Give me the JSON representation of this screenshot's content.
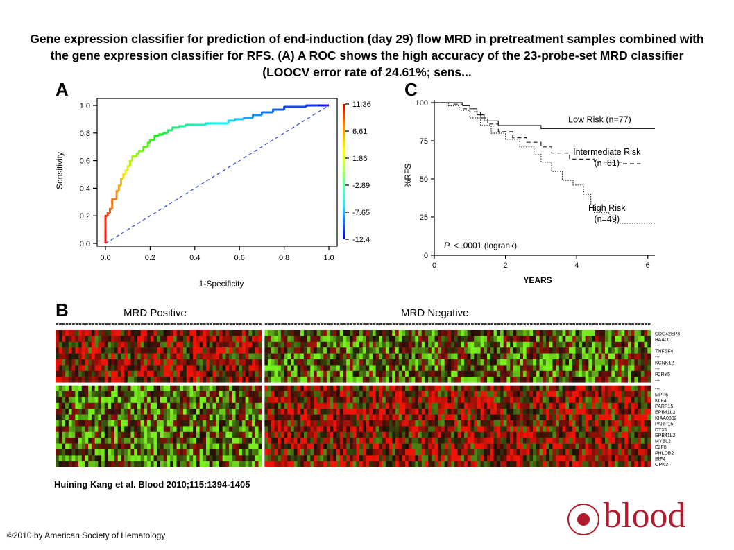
{
  "title": "Gene expression classifier for prediction of end-induction (day 29) flow MRD in pretreatment samples combined with the gene expression classifier for RFS. (A) A ROC shows the high accuracy of the 23-probe-set MRD classifier (LOOCV error rate of 24.61%; sens...",
  "panels": {
    "a": "A",
    "b": "B",
    "c": "C"
  },
  "citation": "Huining Kang et al. Blood 2010;115:1394-1405",
  "copyright": "©2010 by American Society of Hematology",
  "logo": {
    "text": "blood",
    "color": "#b01b2e"
  },
  "chart_data": [
    {
      "panel": "A",
      "type": "line",
      "xlabel": "1-Specificity",
      "ylabel": "Sensitivity",
      "xlim": [
        0,
        1
      ],
      "ylim": [
        0,
        1
      ],
      "xticks": [
        "0.0",
        "0.2",
        "0.4",
        "0.6",
        "0.8",
        "1.0"
      ],
      "yticks": [
        "0.0",
        "0.2",
        "0.4",
        "0.6",
        "0.8",
        "1.0"
      ],
      "series": [
        {
          "style": "rainbow",
          "x": [
            0,
            0,
            0.01,
            0.02,
            0.03,
            0.05,
            0.06,
            0.07,
            0.08,
            0.09,
            0.1,
            0.11,
            0.12,
            0.14,
            0.15,
            0.17,
            0.19,
            0.2,
            0.22,
            0.24,
            0.26,
            0.28,
            0.3,
            0.33,
            0.36,
            0.4,
            0.45,
            0.5,
            0.55,
            0.58,
            0.62,
            0.66,
            0.7,
            0.75,
            0.8,
            0.9,
            0.95,
            1.0
          ],
          "y": [
            0,
            0.1,
            0.2,
            0.22,
            0.25,
            0.32,
            0.38,
            0.42,
            0.47,
            0.5,
            0.53,
            0.56,
            0.6,
            0.63,
            0.65,
            0.67,
            0.7,
            0.73,
            0.75,
            0.78,
            0.79,
            0.8,
            0.82,
            0.84,
            0.85,
            0.86,
            0.86,
            0.87,
            0.87,
            0.89,
            0.9,
            0.91,
            0.93,
            0.95,
            0.97,
            0.99,
            1.0,
            1.0
          ]
        },
        {
          "style": "dashed",
          "color": "#3a4fd6",
          "x": [
            0,
            1
          ],
          "y": [
            0,
            1
          ]
        }
      ],
      "colorbar": {
        "ticks": [
          "11.36",
          "6.61",
          "1.86",
          "-2.89",
          "-7.65",
          "-12.4"
        ],
        "range": [
          -12.4,
          11.36
        ]
      }
    },
    {
      "panel": "C",
      "type": "line",
      "xlabel": "YEARS",
      "ylabel": "%RFS",
      "xlim": [
        0,
        6.2
      ],
      "ylim": [
        0,
        100
      ],
      "xticks": [
        "0",
        "2",
        "4",
        "6"
      ],
      "yticks": [
        "0",
        "25",
        "50",
        "75",
        "100"
      ],
      "annotation": "< .0001 (logrank)",
      "annotation_prefix": "P",
      "series": [
        {
          "name": "Low Risk (n=77)",
          "style": "solid",
          "x": [
            0,
            0.4,
            0.8,
            1.0,
            1.2,
            1.4,
            1.8,
            2.5,
            3.0,
            6.2
          ],
          "y": [
            100,
            100,
            98,
            96,
            92,
            88,
            85,
            85,
            83,
            83
          ]
        },
        {
          "name": "Intermediate Risk (n=81)",
          "style": "dashed",
          "x": [
            0,
            0.5,
            0.8,
            1.0,
            1.3,
            1.5,
            1.8,
            2.2,
            2.6,
            3.0,
            3.3,
            3.8,
            4.5,
            5.3,
            5.8
          ],
          "y": [
            100,
            99,
            96,
            94,
            90,
            86,
            81,
            77,
            74,
            71,
            67,
            63,
            61,
            60,
            60
          ]
        },
        {
          "name": "High Risk (n=49)",
          "style": "dotted",
          "x": [
            0,
            0.4,
            0.7,
            1.0,
            1.3,
            1.6,
            2.0,
            2.4,
            2.8,
            3.0,
            3.3,
            3.6,
            3.9,
            4.2,
            4.4,
            4.5,
            4.9,
            5.1,
            6.2
          ],
          "y": [
            100,
            98,
            95,
            90,
            85,
            80,
            76,
            71,
            66,
            61,
            55,
            49,
            46,
            40,
            33,
            28,
            27,
            21,
            21
          ]
        }
      ]
    },
    {
      "panel": "B",
      "type": "heatmap",
      "group_labels": [
        "MRD Positive",
        "MRD Negative"
      ],
      "group_sizes": [
        63,
        118
      ],
      "row_labels": [
        "CDC42EP3",
        "BAALC",
        "---",
        "TNFSF4",
        "---",
        "KCNK12",
        "---",
        "P2RY5",
        "---",
        "---",
        "MPP6",
        "KLF4",
        "PARP15",
        "EPB41L2",
        "KIAA0802",
        "PARP15",
        "DTX1",
        "EPB41L2",
        "MYBL2",
        "E2F8",
        "PHLDB2",
        "IRF4",
        "OPN3"
      ],
      "upper_block_rows": 9,
      "colors": {
        "high": "#e0141e",
        "low": "#78f01e",
        "mid": "#1a0e06"
      }
    }
  ]
}
